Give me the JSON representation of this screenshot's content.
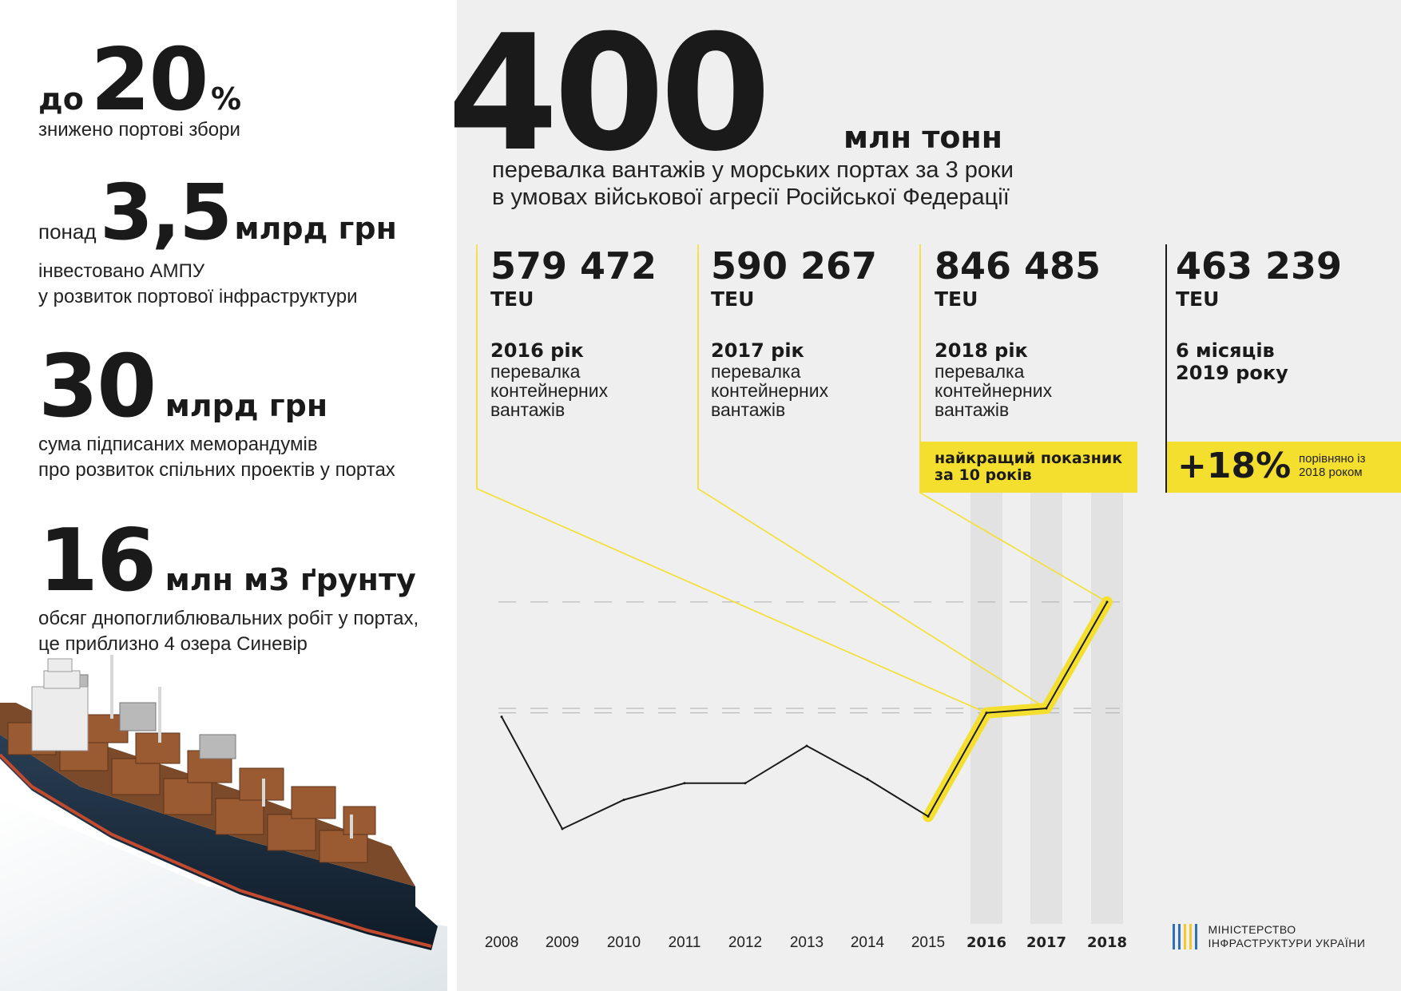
{
  "stats": [
    {
      "prefix": "до",
      "number": "20",
      "unit": "%",
      "desc": [
        "знижено портові збори"
      ]
    },
    {
      "prefix": "понад",
      "number": "3,5",
      "unit": "млрд грн",
      "desc": [
        "інвестовано АМПУ",
        "у розвиток портової інфраструктури"
      ]
    },
    {
      "number": "30",
      "unit": "млрд грн",
      "desc": [
        "сума підписаних меморандумів",
        "про розвиток спільних проектів у портах"
      ]
    },
    {
      "number": "16",
      "unit": "млн м3 ґрунту",
      "desc": [
        "обсяг днопоглиблювальних робіт у портах,",
        "це приблизно 4 озера Синевір"
      ]
    }
  ],
  "headline": {
    "number": "400",
    "unit": "млн тонн",
    "desc": [
      "перевалка вантажів у морських портах за 3 роки",
      "в умовах військової агресії Російської Федерації"
    ]
  },
  "teu": [
    {
      "value": "579 472",
      "unit": "TEU",
      "year": "2016 рік",
      "desc": [
        "перевалка",
        "контейнерних",
        "вантажів"
      ]
    },
    {
      "value": "590 267",
      "unit": "TEU",
      "year": "2017 рік",
      "desc": [
        "перевалка",
        "контейнерних",
        "вантажів"
      ]
    },
    {
      "value": "846 485",
      "unit": "TEU",
      "year": "2018 рік",
      "desc": [
        "перевалка",
        "контейнерних",
        "вантажів"
      ]
    },
    {
      "value": "463 239",
      "unit": "TEU",
      "year": "6 місяців",
      "desc": [
        "2019 року"
      ]
    }
  ],
  "highlights": {
    "best": [
      "найкращий показник",
      "за 10 років"
    ],
    "growth": "+18%",
    "growth_note": [
      "порівняно із",
      "2018 роком"
    ]
  },
  "chart_data": {
    "type": "line",
    "x": [
      "2008",
      "2009",
      "2010",
      "2011",
      "2012",
      "2013",
      "2014",
      "2015",
      "2016",
      "2017",
      "2018"
    ],
    "bold_ticks": [
      "2016",
      "2017",
      "2018"
    ],
    "values": [
      570,
      300,
      370,
      410,
      410,
      500,
      420,
      330,
      579.472,
      590.267,
      846.485
    ],
    "highlight_from": "2015",
    "ylim": [
      200,
      950
    ],
    "reference_lines": [
      846.485,
      590.267,
      579.472
    ],
    "colors": {
      "line": "#1a1a1a",
      "highlight": "#f4df2f",
      "band": "#e2e2e2"
    }
  },
  "ministry": [
    "МІНІСТЕРСТВО",
    "ІНФРАСТРУКТУРИ УКРАЇНИ"
  ],
  "colors": {
    "yellow": "#f4df2f",
    "background": "#efefef",
    "text": "#1a1a1a",
    "ministry_blue": "#2f6fb5"
  }
}
